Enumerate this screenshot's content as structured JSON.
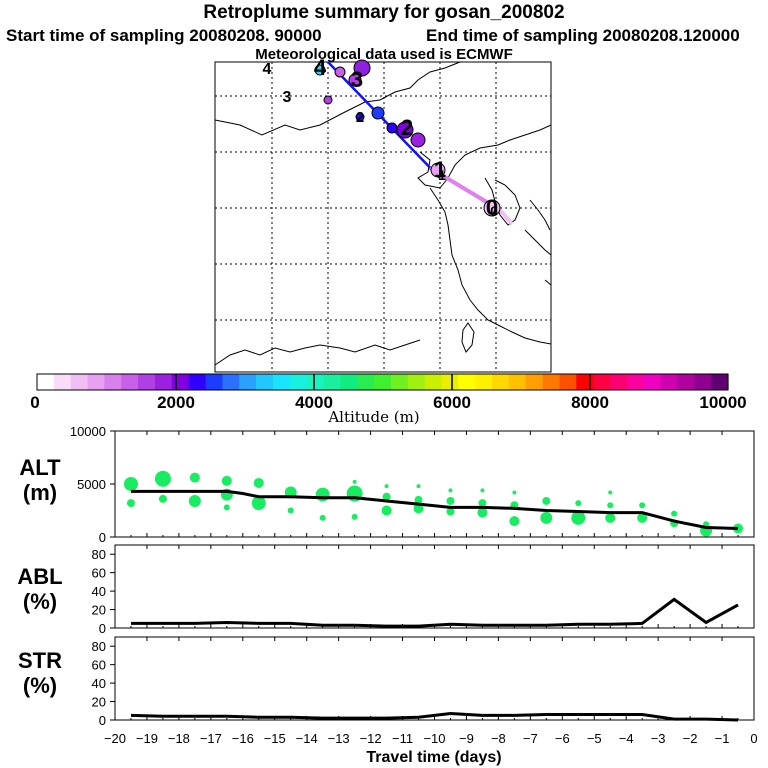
{
  "header": {
    "title": "Retroplume summary for gosan_200802",
    "start_label": "Start time of sampling 20080208. 90000",
    "end_label": "End time of sampling 20080208.120000",
    "met_label": "Meteorological data used is ECMWF"
  },
  "map": {
    "day_markers": [
      "0",
      "1",
      "2",
      "3",
      "4"
    ],
    "centroid_markers": [
      "4",
      "3",
      "2",
      "1",
      "0"
    ]
  },
  "colorbar": {
    "tick_labels": [
      "0",
      "2000",
      "4000",
      "6000",
      "8000",
      "10000"
    ],
    "title": "Altitude (m)",
    "colors": [
      "#ffffff",
      "#f8dcf8",
      "#f0c0f4",
      "#e8a0f0",
      "#d880ec",
      "#c860e8",
      "#b040e4",
      "#9c20e0",
      "#8000e0",
      "#3000ff",
      "#1c3cff",
      "#2c70ff",
      "#2ca0ff",
      "#20c8ff",
      "#18e4ff",
      "#18f0e0",
      "#18f4c0",
      "#18f0a0",
      "#10ec80",
      "#28ec50",
      "#40f030",
      "#70f020",
      "#a0f010",
      "#c8f000",
      "#e8f000",
      "#ffff00",
      "#fff000",
      "#ffd800",
      "#ffc000",
      "#ffa000",
      "#ff7800",
      "#ff5000",
      "#ff0000",
      "#ff0040",
      "#ff0070",
      "#ff00a0",
      "#f000c0",
      "#d000b0",
      "#b000a0",
      "#900090",
      "#600070"
    ]
  },
  "panels": {
    "alt": {
      "label_line1": "ALT",
      "label_line2": "(m)"
    },
    "abl": {
      "label_line1": "ABL",
      "label_line2": "(%)"
    },
    "str": {
      "label_line1": "STR",
      "label_line2": "(%)"
    }
  },
  "xaxis": {
    "title": "Travel time (days)",
    "tick_labels": [
      "−20",
      "−19",
      "−18",
      "−17",
      "−16",
      "−15",
      "−14",
      "−13",
      "−12",
      "−11",
      "−10",
      "−9",
      "−8",
      "−7",
      "−6",
      "−5",
      "−4",
      "−3",
      "−2",
      "−1",
      "0"
    ]
  },
  "chart_data": [
    {
      "type": "line",
      "title": "ALT",
      "ylabel": "ALT (m)",
      "xlabel": "Travel time (days)",
      "xlim": [
        -20,
        0
      ],
      "ylim": [
        0,
        10000
      ],
      "y_tick_labels": [
        "0",
        "5000",
        "10000"
      ],
      "x": [
        -19.5,
        -18.5,
        -17.5,
        -16.5,
        -16.0,
        -15.5,
        -14.5,
        -13.5,
        -12.5,
        -11.5,
        -10.5,
        -9.5,
        -8.5,
        -7.5,
        -6.5,
        -5.5,
        -4.5,
        -3.5,
        -3.0,
        -2.5,
        -1.5,
        -0.5
      ],
      "values": [
        4300,
        4300,
        4300,
        4300,
        4100,
        3800,
        3800,
        3700,
        3700,
        3400,
        3100,
        2800,
        2800,
        2700,
        2500,
        2400,
        2300,
        2300,
        1900,
        1500,
        900,
        800
      ],
      "scatter_points": [
        {
          "x": -19.5,
          "y": 5000,
          "r": 7
        },
        {
          "x": -19.5,
          "y": 3200,
          "r": 4
        },
        {
          "x": -18.5,
          "y": 5500,
          "r": 8
        },
        {
          "x": -18.5,
          "y": 3600,
          "r": 4
        },
        {
          "x": -17.5,
          "y": 5600,
          "r": 5
        },
        {
          "x": -17.5,
          "y": 3400,
          "r": 6
        },
        {
          "x": -16.5,
          "y": 5300,
          "r": 5
        },
        {
          "x": -16.5,
          "y": 4000,
          "r": 6
        },
        {
          "x": -16.5,
          "y": 2800,
          "r": 3
        },
        {
          "x": -15.5,
          "y": 5100,
          "r": 5
        },
        {
          "x": -15.5,
          "y": 3200,
          "r": 7
        },
        {
          "x": -14.5,
          "y": 4200,
          "r": 6
        },
        {
          "x": -14.5,
          "y": 2500,
          "r": 3
        },
        {
          "x": -13.5,
          "y": 4000,
          "r": 7
        },
        {
          "x": -13.5,
          "y": 1800,
          "r": 3
        },
        {
          "x": -12.5,
          "y": 5200,
          "r": 2
        },
        {
          "x": -12.5,
          "y": 4100,
          "r": 8
        },
        {
          "x": -12.5,
          "y": 1900,
          "r": 3
        },
        {
          "x": -11.5,
          "y": 4800,
          "r": 2
        },
        {
          "x": -11.5,
          "y": 3800,
          "r": 4
        },
        {
          "x": -11.5,
          "y": 2500,
          "r": 5
        },
        {
          "x": -10.5,
          "y": 4800,
          "r": 2
        },
        {
          "x": -10.5,
          "y": 3500,
          "r": 4
        },
        {
          "x": -10.5,
          "y": 2700,
          "r": 5
        },
        {
          "x": -9.5,
          "y": 4400,
          "r": 2
        },
        {
          "x": -9.5,
          "y": 3400,
          "r": 4
        },
        {
          "x": -9.5,
          "y": 2400,
          "r": 4
        },
        {
          "x": -8.5,
          "y": 4400,
          "r": 2
        },
        {
          "x": -8.5,
          "y": 3200,
          "r": 4
        },
        {
          "x": -8.5,
          "y": 2300,
          "r": 5
        },
        {
          "x": -7.5,
          "y": 4200,
          "r": 2
        },
        {
          "x": -7.5,
          "y": 3000,
          "r": 4
        },
        {
          "x": -7.5,
          "y": 1500,
          "r": 5
        },
        {
          "x": -6.5,
          "y": 3400,
          "r": 4
        },
        {
          "x": -6.5,
          "y": 1800,
          "r": 6
        },
        {
          "x": -5.5,
          "y": 3200,
          "r": 3
        },
        {
          "x": -5.5,
          "y": 1800,
          "r": 7
        },
        {
          "x": -4.5,
          "y": 4200,
          "r": 2
        },
        {
          "x": -4.5,
          "y": 3000,
          "r": 3
        },
        {
          "x": -4.5,
          "y": 1800,
          "r": 5
        },
        {
          "x": -3.5,
          "y": 3000,
          "r": 3
        },
        {
          "x": -3.5,
          "y": 1800,
          "r": 5
        },
        {
          "x": -2.5,
          "y": 2200,
          "r": 3
        },
        {
          "x": -2.5,
          "y": 1300,
          "r": 4
        },
        {
          "x": -1.5,
          "y": 1200,
          "r": 3
        },
        {
          "x": -1.5,
          "y": 600,
          "r": 6
        },
        {
          "x": -0.5,
          "y": 800,
          "r": 5
        }
      ]
    },
    {
      "type": "line",
      "title": "ABL",
      "ylabel": "ABL (%)",
      "xlim": [
        -20,
        0
      ],
      "ylim": [
        0,
        90
      ],
      "y_tick_labels": [
        "0",
        "20",
        "40",
        "60",
        "80"
      ],
      "x": [
        -19.5,
        -18.5,
        -17.5,
        -16.5,
        -15.5,
        -14.5,
        -13.5,
        -12.5,
        -11.5,
        -10.5,
        -9.5,
        -8.5,
        -7.5,
        -6.5,
        -5.5,
        -4.5,
        -3.5,
        -2.5,
        -1.5,
        -0.5
      ],
      "values": [
        5,
        5,
        5,
        6,
        5,
        5,
        3,
        3,
        2,
        2,
        4,
        3,
        3,
        3,
        4,
        4,
        5,
        31,
        6,
        25
      ]
    },
    {
      "type": "line",
      "title": "STR",
      "ylabel": "STR (%)",
      "xlim": [
        -20,
        0
      ],
      "ylim": [
        0,
        90
      ],
      "y_tick_labels": [
        "0",
        "20",
        "40",
        "60",
        "80"
      ],
      "x": [
        -19.5,
        -18.5,
        -17.5,
        -16.5,
        -15.5,
        -14.5,
        -13.5,
        -12.5,
        -11.5,
        -10.5,
        -9.5,
        -8.5,
        -7.5,
        -6.5,
        -5.5,
        -4.5,
        -3.5,
        -2.5,
        -1.5,
        -0.5
      ],
      "values": [
        5,
        4,
        4,
        4,
        3,
        3,
        2,
        2,
        2,
        3,
        7,
        5,
        5,
        6,
        6,
        6,
        6,
        1,
        1,
        0
      ]
    }
  ]
}
